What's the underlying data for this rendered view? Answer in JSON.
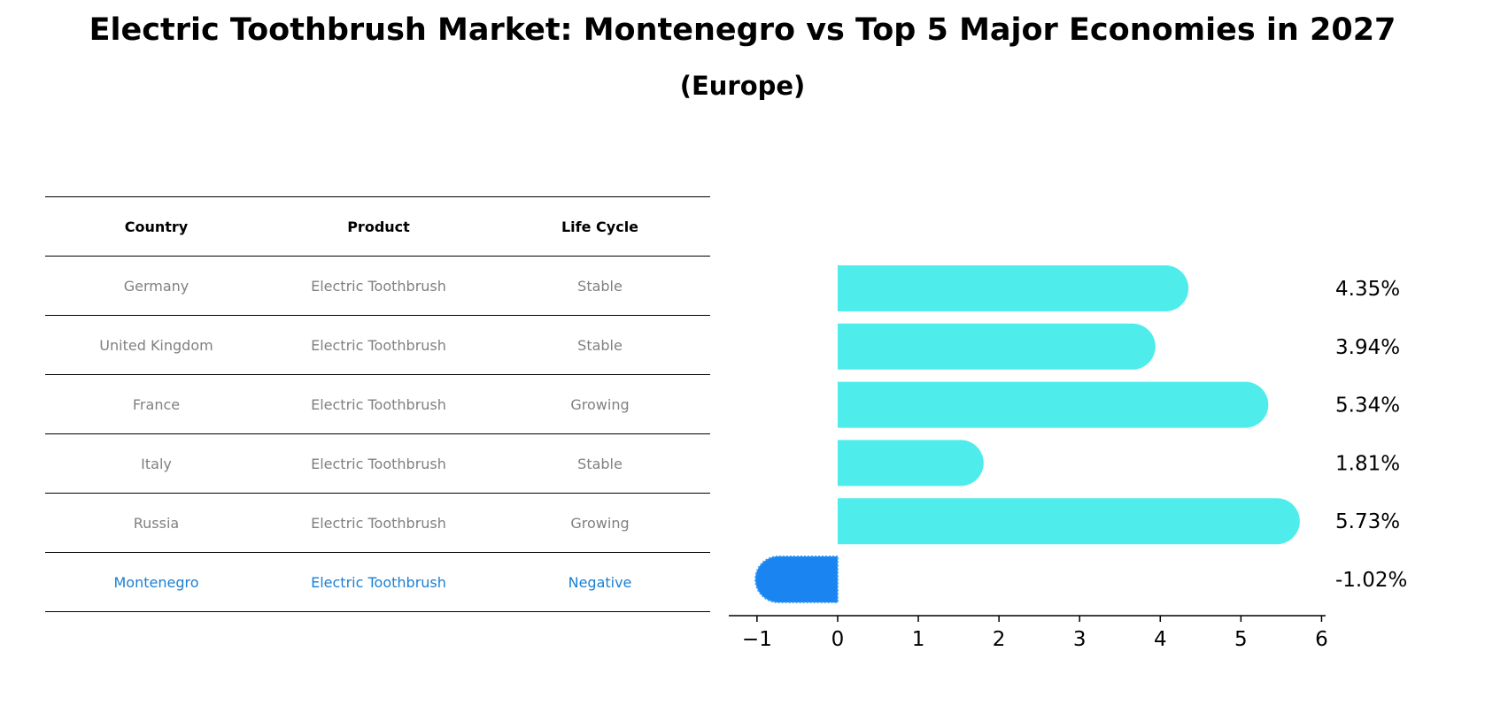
{
  "title": "Electric Toothbrush Market: Montenegro vs Top 5 Major Economies in 2027",
  "subtitle": "(Europe)",
  "table": {
    "headers": [
      "Country",
      "Product",
      "Life Cycle"
    ],
    "rows": [
      [
        "Germany",
        "Electric Toothbrush",
        "Stable"
      ],
      [
        "United Kingdom",
        "Electric Toothbrush",
        "Stable"
      ],
      [
        "France",
        "Electric Toothbrush",
        "Growing"
      ],
      [
        "Italy",
        "Electric Toothbrush",
        "Stable"
      ],
      [
        "Russia",
        "Electric Toothbrush",
        "Growing"
      ],
      [
        "Montenegro",
        "Electric Toothbrush",
        "Negative"
      ]
    ]
  },
  "chart_data": {
    "type": "bar",
    "orientation": "horizontal",
    "categories": [
      "Germany",
      "United Kingdom",
      "France",
      "Italy",
      "Russia",
      "Montenegro"
    ],
    "values": [
      4.35,
      3.94,
      5.34,
      1.81,
      5.73,
      -1.02
    ],
    "labels": [
      "4.35%",
      "3.94%",
      "5.34%",
      "1.81%",
      "5.73%",
      "-1.02%"
    ],
    "xlim": [
      -1.35,
      6.05
    ],
    "xticks": [
      -1,
      0,
      1,
      2,
      3,
      4,
      5,
      6
    ],
    "xtick_labels": [
      "−1",
      "0",
      "1",
      "2",
      "3",
      "4",
      "5",
      "6"
    ],
    "colors": {
      "positive": "#4eeceb",
      "highlight": "#1a84f0"
    }
  }
}
